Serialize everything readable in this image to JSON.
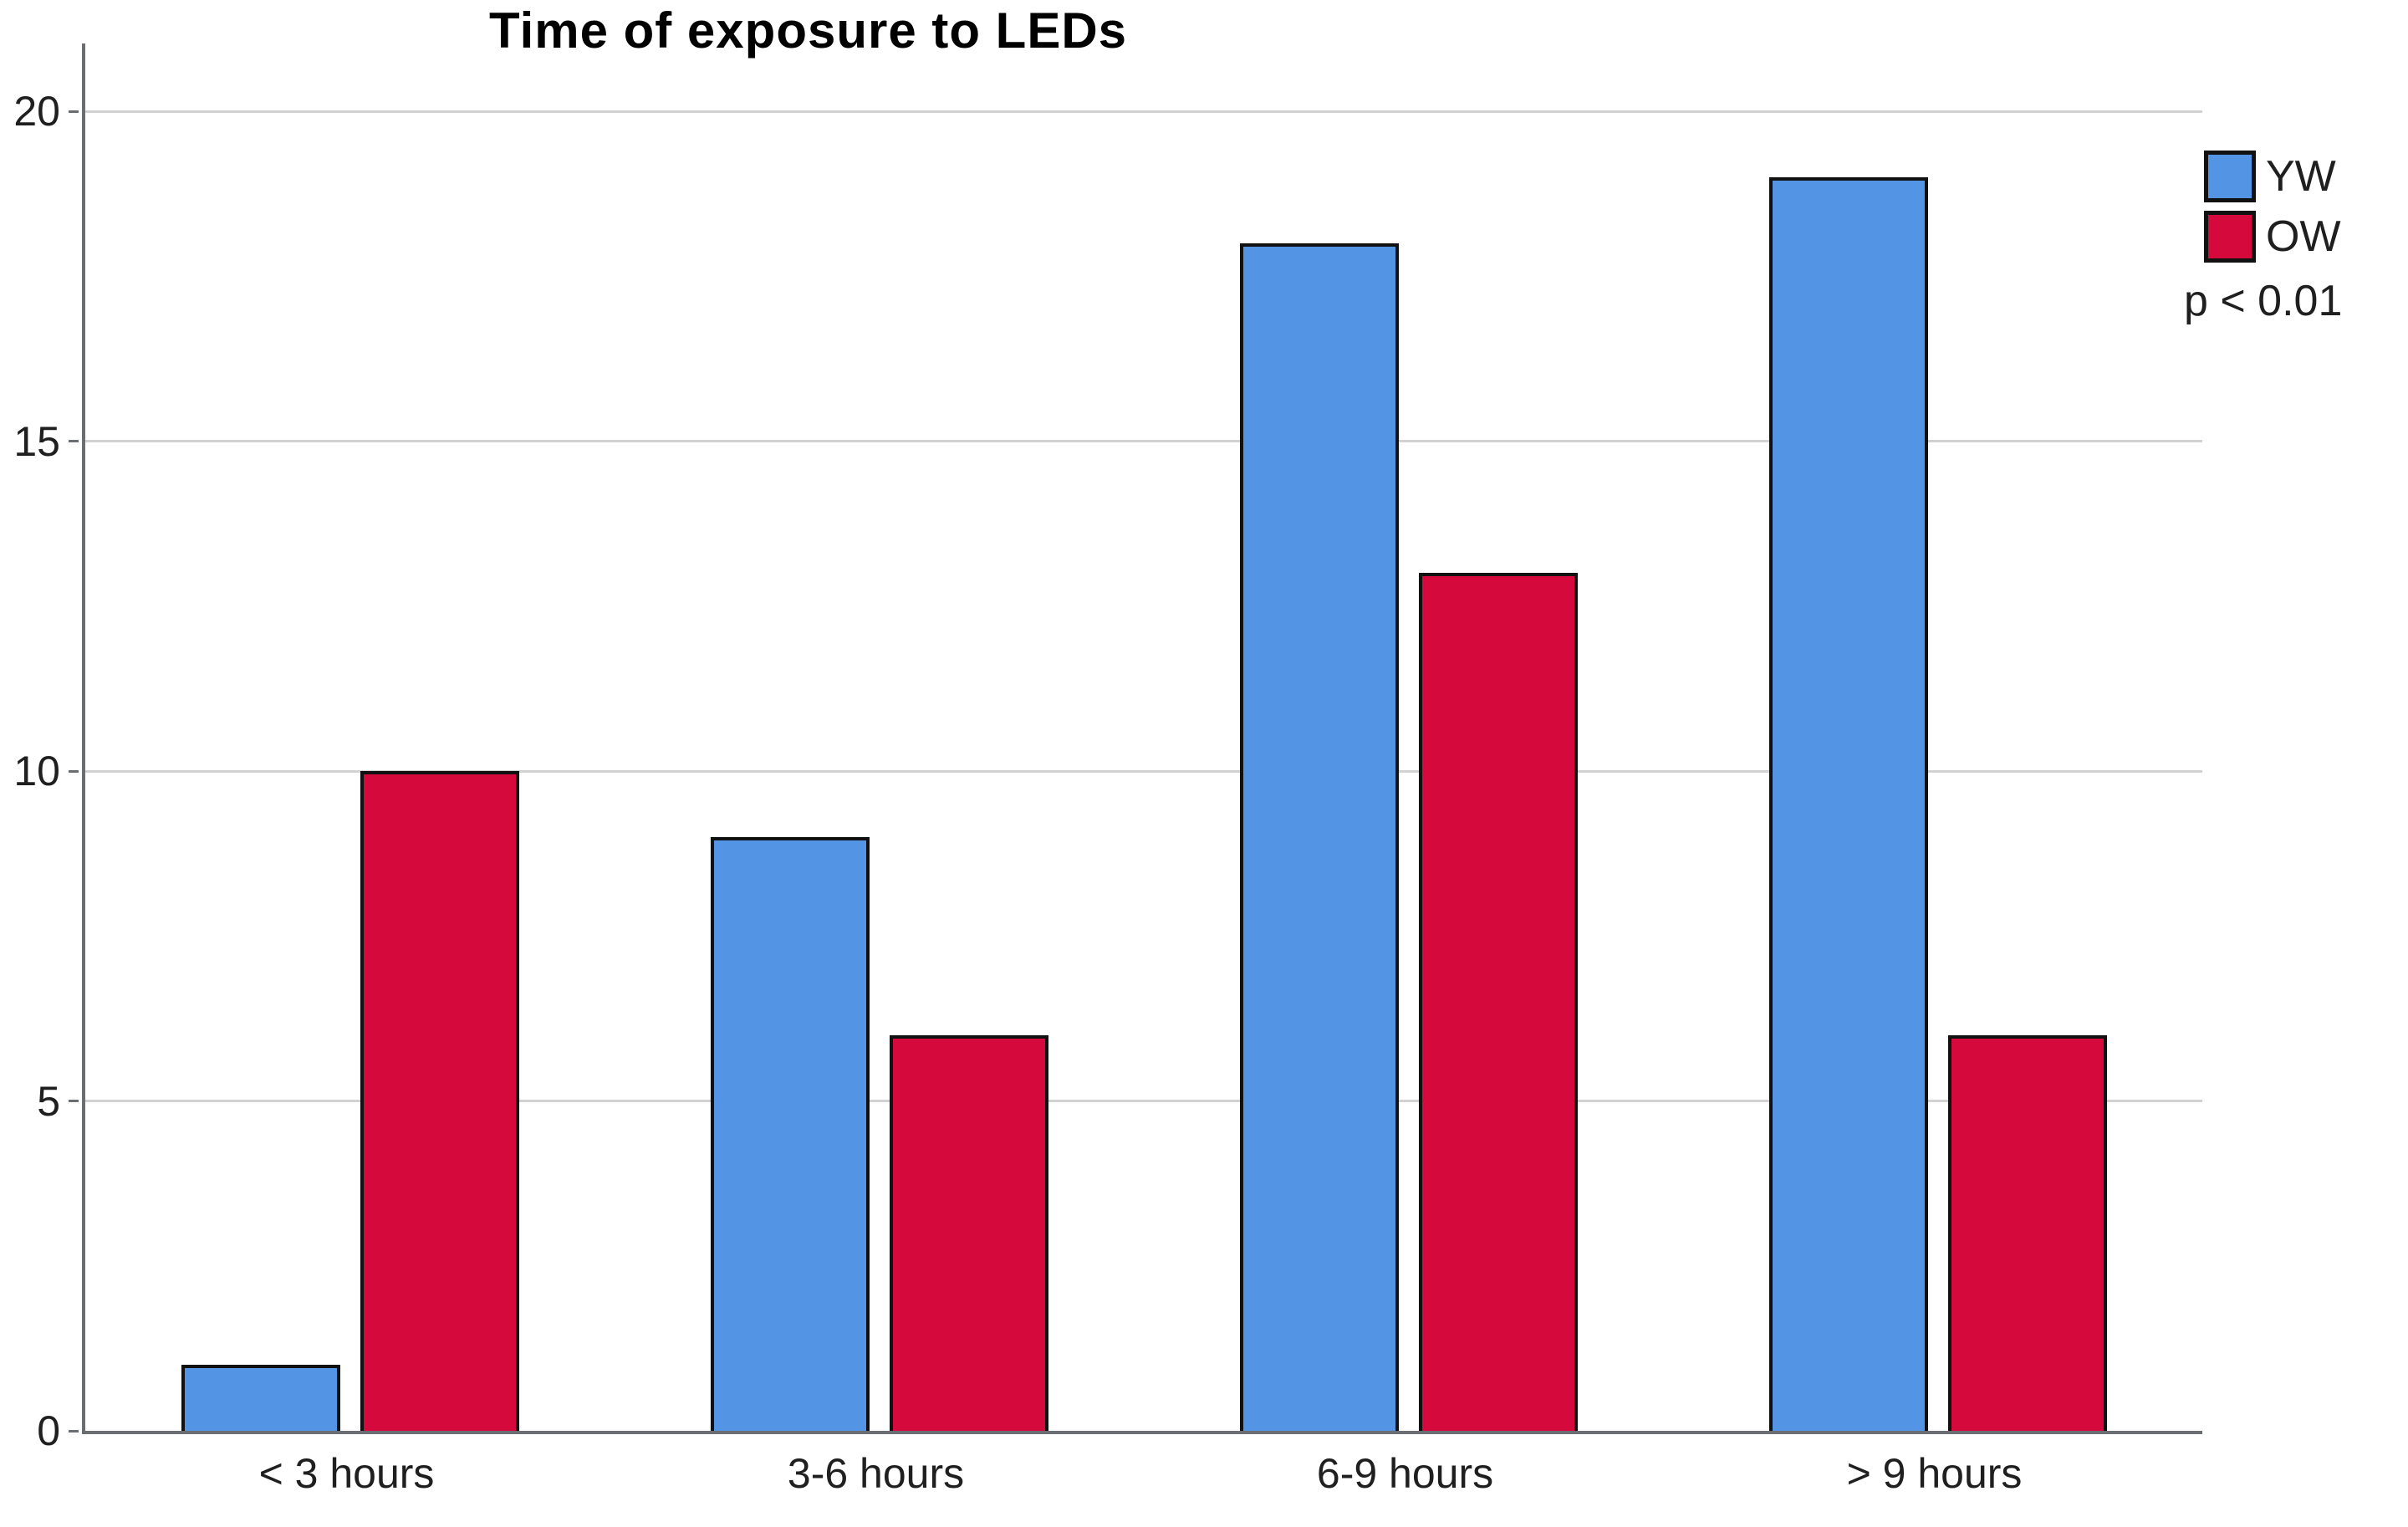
{
  "chart_data": {
    "type": "bar",
    "title": "Time of exposure to LEDs",
    "categories": [
      "< 3 hours",
      "3-6 hours",
      "6-9 hours",
      "> 9 hours"
    ],
    "series": [
      {
        "name": "YW",
        "color": "#5494e4",
        "values": [
          1,
          9,
          18,
          19
        ]
      },
      {
        "name": "OW",
        "color": "#d6093c",
        "values": [
          10,
          6,
          13,
          6
        ]
      }
    ],
    "annotation": "p < 0.01",
    "xlabel": "",
    "ylabel": "",
    "yticks": [
      0,
      5,
      10,
      15,
      20
    ],
    "ylim": [
      0,
      21
    ],
    "grid": "horizontal",
    "legend_position": "top-right",
    "colors": {
      "gridline": "#d2d2d2",
      "axis": "#6a6e72",
      "bar_border": "#111111",
      "text": "#1f1f1f"
    }
  }
}
